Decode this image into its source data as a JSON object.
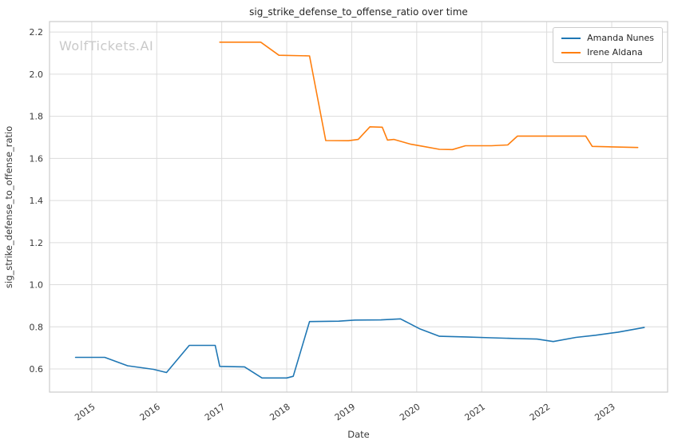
{
  "watermark": "WolfTickets.AI",
  "chart_data": {
    "type": "line",
    "title": "sig_strike_defense_to_offense_ratio over time",
    "xlabel": "Date",
    "ylabel": "sig_strike_defense_to_offense_ratio",
    "xlim": [
      2014.35,
      2023.86
    ],
    "ylim": [
      0.49,
      2.25
    ],
    "x_ticks": [
      2015,
      2016,
      2017,
      2018,
      2019,
      2020,
      2021,
      2022,
      2023
    ],
    "y_ticks": [
      0.6,
      0.8,
      1.0,
      1.2,
      1.4,
      1.6,
      1.8,
      2.0,
      2.2
    ],
    "grid": true,
    "legend_position": "upper right",
    "colors": {
      "grid": "#dcdcdc",
      "spine": "#cccccc",
      "tick": "#3a3a3a",
      "background": "#ffffff"
    },
    "series": [
      {
        "name": "Amanda Nunes",
        "color": "#1f77b4",
        "points": [
          [
            2014.75,
            0.655
          ],
          [
            2015.2,
            0.655
          ],
          [
            2015.55,
            0.615
          ],
          [
            2015.95,
            0.598
          ],
          [
            2016.15,
            0.583
          ],
          [
            2016.5,
            0.712
          ],
          [
            2016.9,
            0.712
          ],
          [
            2016.97,
            0.612
          ],
          [
            2017.35,
            0.61
          ],
          [
            2017.62,
            0.557
          ],
          [
            2018.0,
            0.557
          ],
          [
            2018.1,
            0.565
          ],
          [
            2018.35,
            0.825
          ],
          [
            2018.8,
            0.827
          ],
          [
            2019.05,
            0.832
          ],
          [
            2019.45,
            0.833
          ],
          [
            2019.75,
            0.838
          ],
          [
            2020.05,
            0.79
          ],
          [
            2020.35,
            0.755
          ],
          [
            2020.75,
            0.752
          ],
          [
            2021.15,
            0.748
          ],
          [
            2021.55,
            0.744
          ],
          [
            2021.85,
            0.742
          ],
          [
            2022.1,
            0.73
          ],
          [
            2022.45,
            0.75
          ],
          [
            2022.75,
            0.76
          ],
          [
            2023.1,
            0.775
          ],
          [
            2023.5,
            0.797
          ]
        ]
      },
      {
        "name": "Irene Aldana",
        "color": "#ff7f0e",
        "points": [
          [
            2016.97,
            2.152
          ],
          [
            2017.6,
            2.152
          ],
          [
            2017.88,
            2.09
          ],
          [
            2018.35,
            2.087
          ],
          [
            2018.6,
            1.685
          ],
          [
            2018.95,
            1.684
          ],
          [
            2019.1,
            1.69
          ],
          [
            2019.28,
            1.75
          ],
          [
            2019.47,
            1.748
          ],
          [
            2019.55,
            1.687
          ],
          [
            2019.65,
            1.69
          ],
          [
            2019.9,
            1.668
          ],
          [
            2020.1,
            1.657
          ],
          [
            2020.35,
            1.643
          ],
          [
            2020.55,
            1.642
          ],
          [
            2020.75,
            1.66
          ],
          [
            2021.15,
            1.66
          ],
          [
            2021.4,
            1.664
          ],
          [
            2021.55,
            1.706
          ],
          [
            2021.9,
            1.706
          ],
          [
            2022.3,
            1.706
          ],
          [
            2022.6,
            1.706
          ],
          [
            2022.7,
            1.657
          ],
          [
            2023.0,
            1.655
          ],
          [
            2023.4,
            1.652
          ]
        ]
      }
    ]
  }
}
